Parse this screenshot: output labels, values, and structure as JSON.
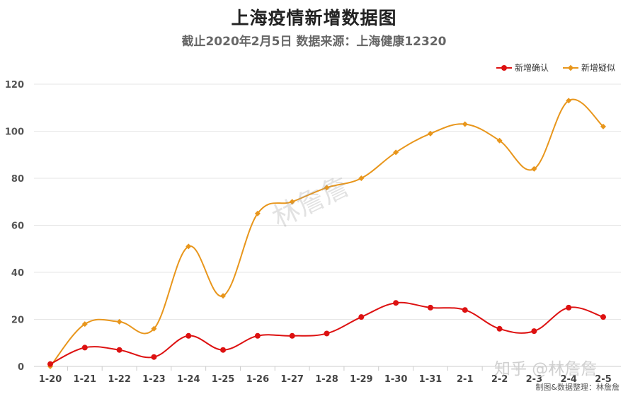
{
  "chart_data": {
    "type": "line",
    "title": "上海疫情新增数据图",
    "subtitle": "截止2020年2月5日 数据来源：上海健康12320",
    "categories": [
      "1-20",
      "1-21",
      "1-22",
      "1-23",
      "1-24",
      "1-25",
      "1-26",
      "1-27",
      "1-28",
      "1-29",
      "1-30",
      "1-31",
      "2-1",
      "2-2",
      "2-3",
      "2-4",
      "2-5"
    ],
    "series": [
      {
        "name": "新增确认",
        "color": "#dd1111",
        "marker": "circle",
        "values": [
          1,
          8,
          7,
          4,
          13,
          7,
          13,
          13,
          14,
          21,
          27,
          25,
          24,
          16,
          15,
          25,
          21
        ]
      },
      {
        "name": "新增疑似",
        "color": "#e8961c",
        "marker": "diamond",
        "values": [
          0,
          18,
          19,
          16,
          51,
          30,
          65,
          70,
          76,
          80,
          91,
          99,
          103,
          96,
          84,
          113,
          102
        ]
      }
    ],
    "ylim": [
      0,
      120
    ],
    "yticks": [
      0,
      20,
      40,
      60,
      80,
      100,
      120
    ],
    "grid": true,
    "legend": "top-right",
    "smooth": true
  },
  "watermark": "林詹詹",
  "zhihu_mark": "知乎 @林詹詹",
  "credit": "制图&数据整理：林詹詹"
}
